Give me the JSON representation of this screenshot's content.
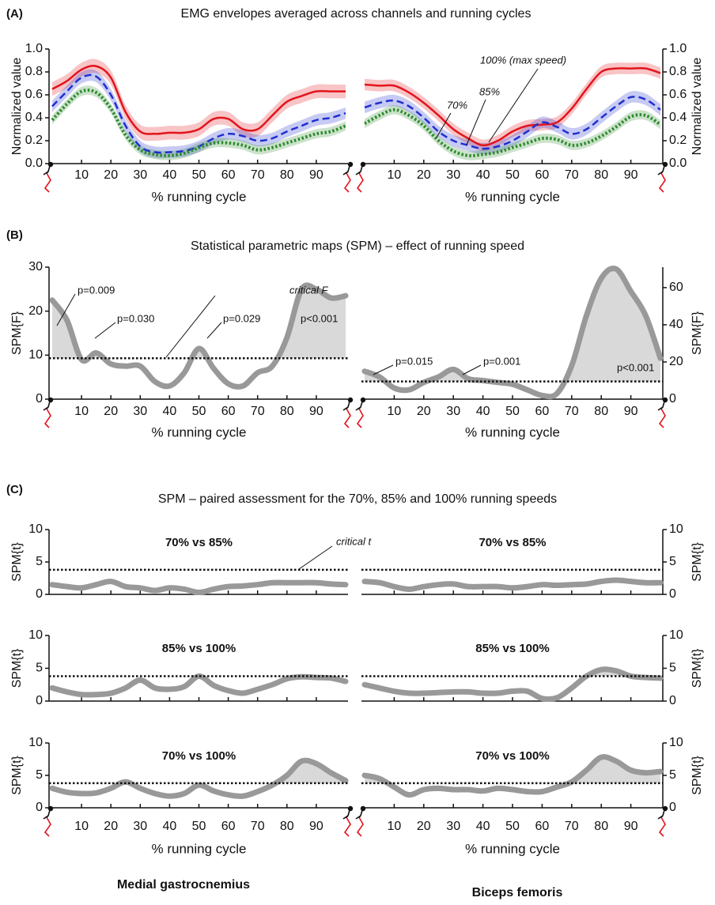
{
  "panels": [
    {
      "label": "(A)",
      "title": "EMG envelopes averaged across channels and running cycles"
    },
    {
      "label": "(B)",
      "title": "Statistical parametric maps (SPM) – effect of running speed"
    },
    {
      "label": "(C)",
      "title": "SPM – paired assessment for the 70%, 85% and 100% running speeds"
    }
  ],
  "muscles": [
    "Medial gastrocnemius",
    "Biceps femoris"
  ],
  "chart_data": [
    {
      "type": "line",
      "x": [
        0,
        5,
        10,
        15,
        20,
        25,
        30,
        35,
        40,
        45,
        50,
        55,
        60,
        65,
        70,
        75,
        80,
        85,
        90,
        95,
        100
      ],
      "xlim": [
        0,
        100
      ],
      "xticks": [
        10,
        20,
        30,
        40,
        50,
        60,
        70,
        80,
        90
      ],
      "ylim": [
        0,
        1
      ],
      "yticks": [
        {
          "value": 0,
          "label": "0.0"
        },
        0.2,
        0.4,
        0.6,
        0.8,
        {
          "value": 1,
          "label": "1.0"
        }
      ],
      "ylabel": "Normalized value",
      "xlabel": "% running cycle",
      "series": [
        {
          "color": "#e3141c",
          "style": "solid",
          "band": 0.06,
          "values": [
            0.65,
            0.72,
            0.82,
            0.85,
            0.75,
            0.45,
            0.28,
            0.26,
            0.27,
            0.27,
            0.3,
            0.39,
            0.39,
            0.3,
            0.3,
            0.42,
            0.54,
            0.59,
            0.63,
            0.63,
            0.63
          ]
        },
        {
          "color": "#1f2fd0",
          "style": "dashed",
          "band": 0.05,
          "values": [
            0.5,
            0.63,
            0.75,
            0.76,
            0.6,
            0.33,
            0.15,
            0.1,
            0.1,
            0.11,
            0.15,
            0.22,
            0.26,
            0.24,
            0.2,
            0.22,
            0.28,
            0.33,
            0.38,
            0.4,
            0.44
          ]
        },
        {
          "color": "#2e8b2e",
          "style": "dotted",
          "band": 0.04,
          "values": [
            0.38,
            0.52,
            0.63,
            0.62,
            0.48,
            0.25,
            0.12,
            0.08,
            0.07,
            0.09,
            0.14,
            0.18,
            0.18,
            0.16,
            0.12,
            0.14,
            0.18,
            0.22,
            0.26,
            0.28,
            0.33
          ]
        }
      ]
    },
    {
      "type": "line",
      "x": [
        0,
        5,
        10,
        15,
        20,
        25,
        30,
        35,
        40,
        45,
        50,
        55,
        60,
        65,
        70,
        75,
        80,
        85,
        90,
        95,
        100
      ],
      "xlim": [
        0,
        100
      ],
      "xticks": [
        10,
        20,
        30,
        40,
        50,
        60,
        70,
        80,
        90
      ],
      "ylim": [
        0,
        1
      ],
      "yticks": [
        {
          "value": 0,
          "label": "0.0"
        },
        0.2,
        0.4,
        0.6,
        0.8,
        {
          "value": 1,
          "label": "1.0"
        }
      ],
      "ylabel": "Normalized value",
      "xlabel": "% running cycle",
      "series": [
        {
          "name": "100% (max speed)",
          "color": "#e3141c",
          "style": "solid",
          "band": 0.05,
          "values": [
            0.69,
            0.68,
            0.68,
            0.62,
            0.53,
            0.42,
            0.3,
            0.22,
            0.16,
            0.2,
            0.28,
            0.33,
            0.34,
            0.36,
            0.48,
            0.65,
            0.8,
            0.83,
            0.83,
            0.83,
            0.79
          ]
        },
        {
          "name": "85%",
          "color": "#1f2fd0",
          "style": "dashed",
          "band": 0.05,
          "values": [
            0.49,
            0.53,
            0.55,
            0.5,
            0.4,
            0.28,
            0.2,
            0.16,
            0.13,
            0.15,
            0.2,
            0.28,
            0.36,
            0.32,
            0.26,
            0.3,
            0.4,
            0.5,
            0.58,
            0.56,
            0.47
          ]
        },
        {
          "name": "70%",
          "color": "#2e8b2e",
          "style": "dotted",
          "band": 0.04,
          "values": [
            0.35,
            0.42,
            0.47,
            0.42,
            0.33,
            0.2,
            0.11,
            0.07,
            0.08,
            0.1,
            0.14,
            0.18,
            0.22,
            0.21,
            0.16,
            0.18,
            0.24,
            0.32,
            0.41,
            0.42,
            0.34
          ]
        }
      ]
    },
    {
      "type": "spm",
      "x": [
        0,
        5,
        10,
        15,
        20,
        25,
        30,
        35,
        40,
        45,
        50,
        55,
        60,
        65,
        70,
        75,
        80,
        85,
        90,
        95,
        100
      ],
      "xlim": [
        0,
        100
      ],
      "xticks": [
        10,
        20,
        30,
        40,
        50,
        60,
        70,
        80,
        90
      ],
      "ylim": [
        0,
        30
      ],
      "yticks": [
        0,
        10,
        20,
        30
      ],
      "ylabel": "SPM{F}",
      "xlabel": "% running cycle",
      "threshold": {
        "value": 9.3,
        "label": "critical F"
      },
      "annotations": [
        "p=0.009",
        "p=0.030",
        "p=0.029",
        "p<0.001"
      ],
      "series": [
        {
          "color": "#999999",
          "values": [
            22.5,
            18,
            9,
            10.5,
            8,
            7.5,
            7.5,
            4,
            3,
            6,
            11.5,
            7,
            3.5,
            3,
            6,
            7.5,
            14,
            25,
            25,
            23,
            23.5
          ]
        }
      ]
    },
    {
      "type": "spm",
      "x": [
        0,
        5,
        10,
        15,
        20,
        25,
        30,
        35,
        40,
        45,
        50,
        55,
        60,
        65,
        70,
        75,
        80,
        85,
        90,
        95,
        100
      ],
      "xlim": [
        0,
        100
      ],
      "xticks": [
        10,
        20,
        30,
        40,
        50,
        60,
        70,
        80,
        90
      ],
      "ylim": [
        0,
        71
      ],
      "yticks": [
        0,
        20,
        40,
        60
      ],
      "ylabel": "SPM{F}",
      "xlabel": "% running cycle",
      "threshold": {
        "value": 9.5
      },
      "annotations": [
        "p=0.015",
        "p=0.001",
        "p<0.001"
      ],
      "series": [
        {
          "color": "#999999",
          "values": [
            15,
            12,
            6,
            5,
            9,
            12,
            16,
            11,
            10,
            9,
            8,
            5,
            2,
            3,
            18,
            45,
            65,
            70,
            58,
            45,
            22
          ]
        }
      ]
    },
    {
      "type": "spm",
      "title": "70% vs 85%",
      "x": [
        0,
        5,
        10,
        15,
        20,
        25,
        30,
        35,
        40,
        45,
        50,
        55,
        60,
        65,
        70,
        75,
        80,
        85,
        90,
        95,
        100
      ],
      "xlim": [
        0,
        100
      ],
      "xticks": [
        10,
        20,
        30,
        40,
        50,
        60,
        70,
        80,
        90
      ],
      "ylim": [
        0,
        10
      ],
      "yticks": [
        0,
        5,
        10
      ],
      "ylabel": "SPM{t}",
      "threshold": {
        "value": 3.8,
        "label": "critical t"
      },
      "series": [
        {
          "color": "#999999",
          "values": [
            1.5,
            1.2,
            1.0,
            1.5,
            2.0,
            1.2,
            1.0,
            0.6,
            1.0,
            0.8,
            0.3,
            0.8,
            1.2,
            1.3,
            1.5,
            1.8,
            1.8,
            1.8,
            1.8,
            1.6,
            1.5
          ]
        }
      ]
    },
    {
      "type": "spm",
      "title": "70% vs 85%",
      "x": [
        0,
        5,
        10,
        15,
        20,
        25,
        30,
        35,
        40,
        45,
        50,
        55,
        60,
        65,
        70,
        75,
        80,
        85,
        90,
        95,
        100
      ],
      "xlim": [
        0,
        100
      ],
      "xticks": [
        10,
        20,
        30,
        40,
        50,
        60,
        70,
        80,
        90
      ],
      "ylim": [
        0,
        10
      ],
      "yticks": [
        0,
        5,
        10
      ],
      "ylabel": "SPM{t}",
      "threshold": {
        "value": 3.8
      },
      "series": [
        {
          "color": "#999999",
          "values": [
            2.0,
            1.8,
            1.2,
            0.8,
            1.2,
            1.5,
            1.6,
            1.2,
            1.2,
            1.2,
            1.0,
            1.2,
            1.5,
            1.4,
            1.5,
            1.6,
            2.0,
            2.2,
            2.0,
            1.8,
            1.8
          ]
        }
      ]
    },
    {
      "type": "spm",
      "title": "85% vs 100%",
      "x": [
        0,
        5,
        10,
        15,
        20,
        25,
        30,
        35,
        40,
        45,
        50,
        55,
        60,
        65,
        70,
        75,
        80,
        85,
        90,
        95,
        100
      ],
      "xlim": [
        0,
        100
      ],
      "xticks": [
        10,
        20,
        30,
        40,
        50,
        60,
        70,
        80,
        90
      ],
      "ylim": [
        0,
        10
      ],
      "yticks": [
        0,
        5,
        10
      ],
      "ylabel": "SPM{t}",
      "threshold": {
        "value": 3.8
      },
      "series": [
        {
          "color": "#999999",
          "values": [
            2.0,
            1.4,
            1.0,
            1.0,
            1.2,
            2.0,
            3.2,
            2.0,
            1.8,
            2.2,
            3.8,
            2.4,
            1.6,
            1.2,
            1.8,
            2.5,
            3.4,
            3.7,
            3.6,
            3.5,
            3.0
          ]
        }
      ]
    },
    {
      "type": "spm",
      "title": "85% vs 100%",
      "x": [
        0,
        5,
        10,
        15,
        20,
        25,
        30,
        35,
        40,
        45,
        50,
        55,
        60,
        65,
        70,
        75,
        80,
        85,
        90,
        95,
        100
      ],
      "xlim": [
        0,
        100
      ],
      "xticks": [
        10,
        20,
        30,
        40,
        50,
        60,
        70,
        80,
        90
      ],
      "ylim": [
        0,
        10
      ],
      "yticks": [
        0,
        5,
        10
      ],
      "ylabel": "SPM{t}",
      "threshold": {
        "value": 3.8
      },
      "series": [
        {
          "color": "#999999",
          "values": [
            2.5,
            2.0,
            1.5,
            1.2,
            1.2,
            1.3,
            1.4,
            1.4,
            1.2,
            1.2,
            1.5,
            1.5,
            0.4,
            0.5,
            2.0,
            3.8,
            4.8,
            4.6,
            3.8,
            3.6,
            3.5
          ]
        }
      ]
    },
    {
      "type": "spm",
      "title": "70% vs 100%",
      "x": [
        0,
        5,
        10,
        15,
        20,
        25,
        30,
        35,
        40,
        45,
        50,
        55,
        60,
        65,
        70,
        75,
        80,
        85,
        90,
        95,
        100
      ],
      "xlim": [
        0,
        100
      ],
      "xticks": [
        10,
        20,
        30,
        40,
        50,
        60,
        70,
        80,
        90
      ],
      "ylim": [
        0,
        10
      ],
      "yticks": [
        0,
        5,
        10
      ],
      "ylabel": "SPM{t}",
      "xlabel": "% running cycle",
      "threshold": {
        "value": 3.8
      },
      "series": [
        {
          "color": "#999999",
          "values": [
            3.0,
            2.4,
            2.2,
            2.3,
            3.0,
            4.0,
            3.0,
            2.2,
            1.8,
            2.2,
            3.5,
            2.6,
            2.0,
            1.8,
            2.5,
            3.5,
            5.0,
            7.2,
            6.8,
            5.4,
            4.2
          ]
        }
      ]
    },
    {
      "type": "spm",
      "title": "70% vs 100%",
      "x": [
        0,
        5,
        10,
        15,
        20,
        25,
        30,
        35,
        40,
        45,
        50,
        55,
        60,
        65,
        70,
        75,
        80,
        85,
        90,
        95,
        100
      ],
      "xlim": [
        0,
        100
      ],
      "xticks": [
        10,
        20,
        30,
        40,
        50,
        60,
        70,
        80,
        90
      ],
      "ylim": [
        0,
        10
      ],
      "yticks": [
        0,
        5,
        10
      ],
      "ylabel": "SPM{t}",
      "xlabel": "% running cycle",
      "threshold": {
        "value": 3.8
      },
      "series": [
        {
          "color": "#999999",
          "values": [
            5.0,
            4.5,
            3.2,
            2.0,
            2.8,
            3.0,
            2.8,
            2.8,
            2.6,
            3.0,
            2.8,
            2.5,
            2.5,
            3.2,
            4.0,
            5.8,
            7.8,
            7.2,
            5.8,
            5.4,
            5.6
          ]
        }
      ]
    }
  ]
}
